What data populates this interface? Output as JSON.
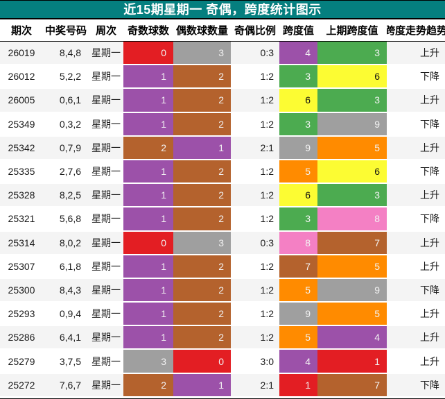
{
  "title": "近15期星期一 奇偶，跨度统计图示",
  "colors": {
    "title_bg": "#057f7f",
    "title_text": "#ffffff",
    "row_bg": "#ffffff",
    "row_alt_bg": "#f4f4f4",
    "header_text": "#000000",
    "body_text": "#1a1a1a"
  },
  "palette": {
    "red": "#e31e23",
    "purple": "#9c51a9",
    "brown": "#b4622d",
    "gray": "#9f9f9f",
    "green": "#4cab50",
    "yellow": "#fcfc33",
    "orange": "#ff8b00",
    "pink": "#f480c4"
  },
  "text_on_color": {
    "default": "#f2f2f2",
    "yellow": "#111111"
  },
  "chart_data": {
    "type": "table",
    "title": "近15期星期一 奇偶，跨度统计图示",
    "columns": [
      "期次",
      "中奖号码",
      "周次",
      "奇数球数",
      "偶数球数量",
      "奇偶比例",
      "跨度值",
      "上期跨度值",
      "跨度走势趋势"
    ],
    "rows": [
      {
        "period": "26019",
        "numbers": "8,4,8",
        "week": "星期一",
        "odd": {
          "v": "0",
          "c": "red"
        },
        "even": {
          "v": "3",
          "c": "gray"
        },
        "ratio": "0:3",
        "span": {
          "v": "4",
          "c": "purple"
        },
        "prev_span": {
          "v": "3",
          "c": "green"
        },
        "trend": "上升"
      },
      {
        "period": "26012",
        "numbers": "5,2,2",
        "week": "星期一",
        "odd": {
          "v": "1",
          "c": "purple"
        },
        "even": {
          "v": "2",
          "c": "brown"
        },
        "ratio": "1:2",
        "span": {
          "v": "3",
          "c": "green"
        },
        "prev_span": {
          "v": "6",
          "c": "yellow"
        },
        "trend": "下降"
      },
      {
        "period": "26005",
        "numbers": "0,6,1",
        "week": "星期一",
        "odd": {
          "v": "1",
          "c": "purple"
        },
        "even": {
          "v": "2",
          "c": "brown"
        },
        "ratio": "1:2",
        "span": {
          "v": "6",
          "c": "yellow"
        },
        "prev_span": {
          "v": "3",
          "c": "green"
        },
        "trend": "上升"
      },
      {
        "period": "25349",
        "numbers": "0,3,2",
        "week": "星期一",
        "odd": {
          "v": "1",
          "c": "purple"
        },
        "even": {
          "v": "2",
          "c": "brown"
        },
        "ratio": "1:2",
        "span": {
          "v": "3",
          "c": "green"
        },
        "prev_span": {
          "v": "9",
          "c": "gray"
        },
        "trend": "下降"
      },
      {
        "period": "25342",
        "numbers": "0,7,9",
        "week": "星期一",
        "odd": {
          "v": "2",
          "c": "brown"
        },
        "even": {
          "v": "1",
          "c": "purple"
        },
        "ratio": "2:1",
        "span": {
          "v": "9",
          "c": "gray"
        },
        "prev_span": {
          "v": "5",
          "c": "orange"
        },
        "trend": "上升"
      },
      {
        "period": "25335",
        "numbers": "2,7,6",
        "week": "星期一",
        "odd": {
          "v": "1",
          "c": "purple"
        },
        "even": {
          "v": "2",
          "c": "brown"
        },
        "ratio": "1:2",
        "span": {
          "v": "5",
          "c": "orange"
        },
        "prev_span": {
          "v": "6",
          "c": "yellow"
        },
        "trend": "下降"
      },
      {
        "period": "25328",
        "numbers": "8,2,5",
        "week": "星期一",
        "odd": {
          "v": "1",
          "c": "purple"
        },
        "even": {
          "v": "2",
          "c": "brown"
        },
        "ratio": "1:2",
        "span": {
          "v": "6",
          "c": "yellow"
        },
        "prev_span": {
          "v": "3",
          "c": "green"
        },
        "trend": "上升"
      },
      {
        "period": "25321",
        "numbers": "5,6,8",
        "week": "星期一",
        "odd": {
          "v": "1",
          "c": "purple"
        },
        "even": {
          "v": "2",
          "c": "brown"
        },
        "ratio": "1:2",
        "span": {
          "v": "3",
          "c": "green"
        },
        "prev_span": {
          "v": "8",
          "c": "pink"
        },
        "trend": "下降"
      },
      {
        "period": "25314",
        "numbers": "8,0,2",
        "week": "星期一",
        "odd": {
          "v": "0",
          "c": "red"
        },
        "even": {
          "v": "3",
          "c": "gray"
        },
        "ratio": "0:3",
        "span": {
          "v": "8",
          "c": "pink"
        },
        "prev_span": {
          "v": "7",
          "c": "brown"
        },
        "trend": "上升"
      },
      {
        "period": "25307",
        "numbers": "6,1,8",
        "week": "星期一",
        "odd": {
          "v": "1",
          "c": "purple"
        },
        "even": {
          "v": "2",
          "c": "brown"
        },
        "ratio": "1:2",
        "span": {
          "v": "7",
          "c": "brown"
        },
        "prev_span": {
          "v": "5",
          "c": "orange"
        },
        "trend": "上升"
      },
      {
        "period": "25300",
        "numbers": "8,4,3",
        "week": "星期一",
        "odd": {
          "v": "1",
          "c": "purple"
        },
        "even": {
          "v": "2",
          "c": "brown"
        },
        "ratio": "1:2",
        "span": {
          "v": "5",
          "c": "orange"
        },
        "prev_span": {
          "v": "9",
          "c": "gray"
        },
        "trend": "下降"
      },
      {
        "period": "25293",
        "numbers": "0,9,4",
        "week": "星期一",
        "odd": {
          "v": "1",
          "c": "purple"
        },
        "even": {
          "v": "2",
          "c": "brown"
        },
        "ratio": "1:2",
        "span": {
          "v": "9",
          "c": "gray"
        },
        "prev_span": {
          "v": "5",
          "c": "orange"
        },
        "trend": "上升"
      },
      {
        "period": "25286",
        "numbers": "6,4,1",
        "week": "星期一",
        "odd": {
          "v": "1",
          "c": "purple"
        },
        "even": {
          "v": "2",
          "c": "brown"
        },
        "ratio": "1:2",
        "span": {
          "v": "5",
          "c": "orange"
        },
        "prev_span": {
          "v": "4",
          "c": "purple"
        },
        "trend": "上升"
      },
      {
        "period": "25279",
        "numbers": "3,7,5",
        "week": "星期一",
        "odd": {
          "v": "3",
          "c": "gray"
        },
        "even": {
          "v": "0",
          "c": "red"
        },
        "ratio": "3:0",
        "span": {
          "v": "4",
          "c": "purple"
        },
        "prev_span": {
          "v": "1",
          "c": "red"
        },
        "trend": "上升"
      },
      {
        "period": "25272",
        "numbers": "7,6,7",
        "week": "星期一",
        "odd": {
          "v": "2",
          "c": "brown"
        },
        "even": {
          "v": "1",
          "c": "purple"
        },
        "ratio": "2:1",
        "span": {
          "v": "1",
          "c": "red"
        },
        "prev_span": {
          "v": "7",
          "c": "brown"
        },
        "trend": "下降"
      }
    ]
  }
}
